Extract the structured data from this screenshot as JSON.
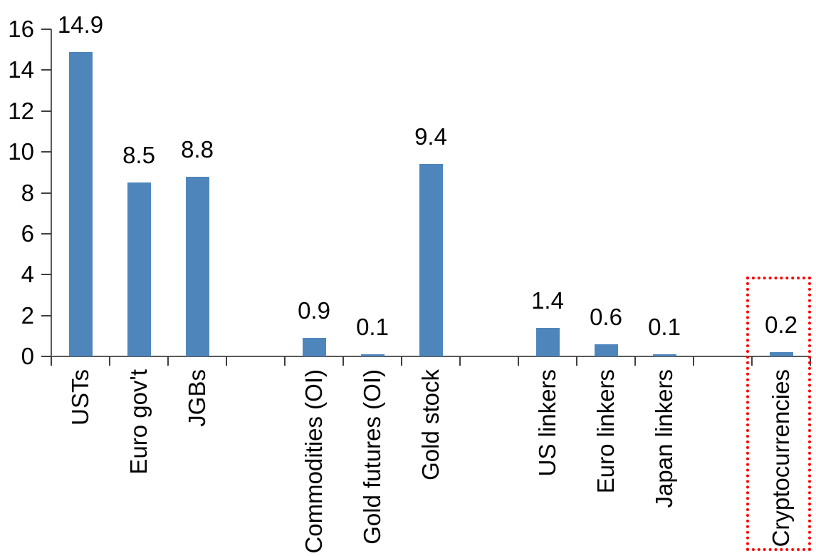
{
  "chart_data": {
    "type": "bar",
    "title": "",
    "xlabel": "",
    "ylabel": "",
    "categories": [
      "USTs",
      "Euro gov't",
      "JGBs",
      "Commodities (OI)",
      "Gold futures (OI)",
      "Gold stock",
      "US linkers",
      "Euro linkers",
      "Japan linkers",
      "Cryptocurrencies"
    ],
    "values": [
      14.9,
      8.5,
      8.8,
      0.9,
      0.1,
      9.4,
      1.4,
      0.6,
      0.1,
      0.2
    ],
    "data_labels": [
      "14.9",
      "8.5",
      "8.8",
      "0.9",
      "0.1",
      "9.4",
      "1.4",
      "0.6",
      "0.1",
      "0.2"
    ],
    "slots": [
      0,
      1,
      2,
      4,
      5,
      6,
      8,
      9,
      10,
      12
    ],
    "total_slots": 13,
    "y_axis": {
      "ticks": [
        "16",
        "14",
        "12",
        "10",
        "8",
        "6",
        "4",
        "2",
        "0"
      ],
      "min": 0,
      "max": 16,
      "step": 2
    },
    "grid": false,
    "legend": false,
    "bar_color": "#4E86BC",
    "axis_color": "#595959",
    "text_color": "#000000",
    "highlight": {
      "category": "Cryptocurrencies",
      "style": "dotted-box",
      "color": "#FF0000"
    }
  }
}
